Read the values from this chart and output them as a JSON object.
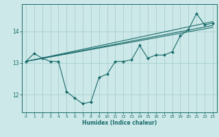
{
  "xlabel": "Humidex (Indice chaleur)",
  "bg_color": "#cce8e8",
  "line_color": "#1a6b6b",
  "grid_color": "#aacfcf",
  "xlim": [
    -0.5,
    23.5
  ],
  "ylim": [
    11.45,
    14.85
  ],
  "yticks": [
    12,
    13,
    14
  ],
  "xticks": [
    0,
    1,
    2,
    3,
    4,
    5,
    6,
    7,
    8,
    9,
    10,
    11,
    12,
    13,
    14,
    15,
    16,
    17,
    18,
    19,
    20,
    21,
    22,
    23
  ],
  "line1_x": [
    0,
    1,
    2,
    3,
    4,
    5,
    6,
    7,
    8,
    9,
    10,
    11,
    12,
    13,
    14,
    15,
    16,
    17,
    18,
    19,
    20,
    21,
    22,
    23
  ],
  "line1_y": [
    13.05,
    13.3,
    13.15,
    13.05,
    13.05,
    12.1,
    11.9,
    11.72,
    11.78,
    12.55,
    12.65,
    13.05,
    13.05,
    13.1,
    13.55,
    13.15,
    13.25,
    13.25,
    13.35,
    13.85,
    14.05,
    14.55,
    14.2,
    14.25
  ],
  "line2_x": [
    0,
    23
  ],
  "line2_y": [
    13.05,
    14.3
  ],
  "line3_x": [
    0,
    23
  ],
  "line3_y": [
    13.05,
    14.18
  ],
  "line4_x": [
    0,
    23
  ],
  "line4_y": [
    13.05,
    14.12
  ]
}
